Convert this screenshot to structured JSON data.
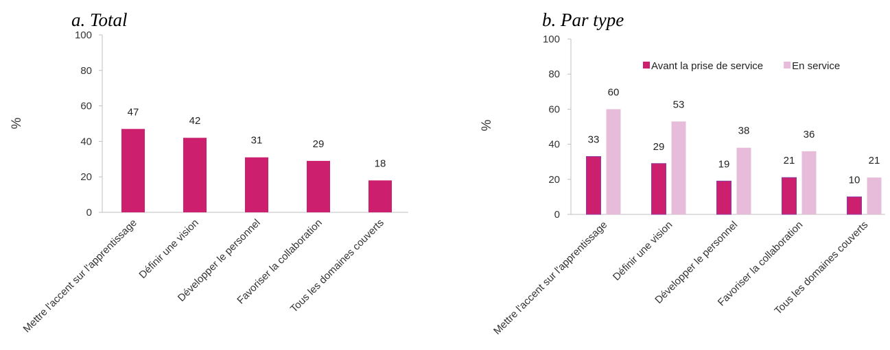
{
  "chart_data": [
    {
      "type": "bar",
      "title": "a. Total",
      "ylabel": "%",
      "ylim": [
        0,
        100
      ],
      "yticks": [
        0,
        20,
        40,
        60,
        80,
        100
      ],
      "grid": false,
      "categories": [
        "Mettre l'accent sur l'apprentissage",
        "Définir une vision",
        "Développer le personnel",
        "Favoriser la collaboration",
        "Tous les domaines couverts"
      ],
      "series": [
        {
          "values": [
            47,
            42,
            31,
            29,
            18
          ],
          "color": "#cc1f6e"
        }
      ]
    },
    {
      "type": "bar",
      "title": "b. Par type",
      "ylabel": "%",
      "ylim": [
        0,
        100
      ],
      "yticks": [
        0,
        20,
        40,
        60,
        80,
        100
      ],
      "grid": false,
      "legend_position": "top-right",
      "categories": [
        "Mettre l'accent sur l'apprentissage",
        "Définir une vision",
        "Développer le personnel",
        "Favoriser la collaboration",
        "Tous les domaines couverts"
      ],
      "series": [
        {
          "name": "Avant la prise de service",
          "values": [
            33,
            29,
            19,
            21,
            10
          ],
          "color": "#cc1f6e"
        },
        {
          "name": "En service",
          "values": [
            60,
            53,
            38,
            36,
            21
          ],
          "color": "#e6bcda"
        }
      ]
    }
  ]
}
